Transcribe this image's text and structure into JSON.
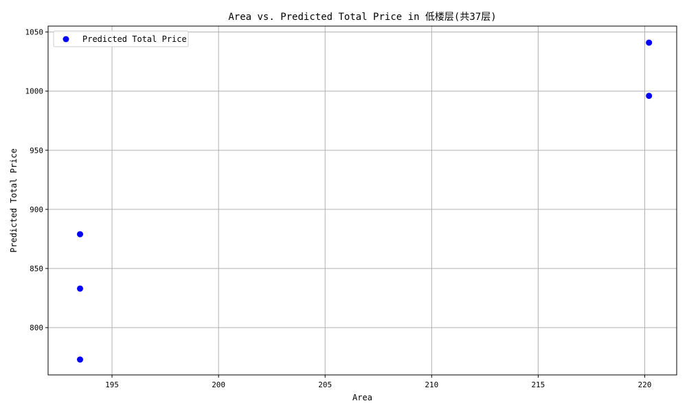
{
  "chart_data": {
    "type": "scatter",
    "title": "Area vs. Predicted Total Price in 低楼层(共37层)",
    "xlabel": "Area",
    "ylabel": "Predicted Total Price",
    "xlim": [
      192,
      221.5
    ],
    "ylim": [
      760,
      1055
    ],
    "xticks": [
      195,
      200,
      205,
      210,
      215,
      220
    ],
    "yticks": [
      800,
      850,
      900,
      950,
      1000,
      1050
    ],
    "grid": true,
    "legend_position": "top-left",
    "series": [
      {
        "name": "Predicted Total Price",
        "color": "#0000ff",
        "marker": "circle",
        "points": [
          {
            "x": 193.5,
            "y": 773
          },
          {
            "x": 193.5,
            "y": 833
          },
          {
            "x": 193.5,
            "y": 879
          },
          {
            "x": 220.2,
            "y": 996
          },
          {
            "x": 220.2,
            "y": 1041
          }
        ]
      }
    ]
  }
}
